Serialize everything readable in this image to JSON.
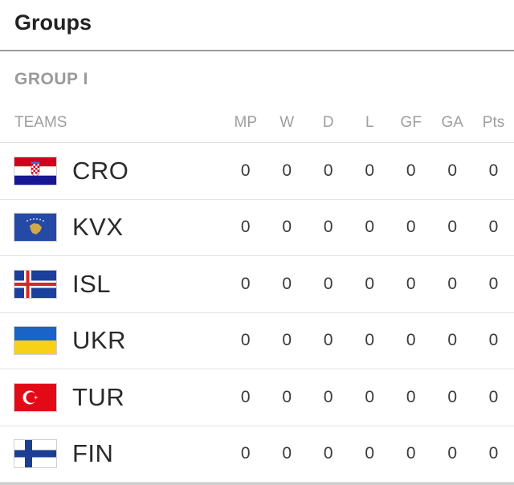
{
  "header": {
    "title": "Groups"
  },
  "group": {
    "label": "GROUP I"
  },
  "table": {
    "columns": {
      "team": "TEAMS",
      "mp": "MP",
      "w": "W",
      "d": "D",
      "l": "L",
      "gf": "GF",
      "ga": "GA",
      "pts": "Pts"
    },
    "rows": [
      {
        "team": "CRO",
        "flag": "croatia-flag",
        "mp": "0",
        "w": "0",
        "d": "0",
        "l": "0",
        "gf": "0",
        "ga": "0",
        "pts": "0"
      },
      {
        "team": "KVX",
        "flag": "kosovo-flag",
        "mp": "0",
        "w": "0",
        "d": "0",
        "l": "0",
        "gf": "0",
        "ga": "0",
        "pts": "0"
      },
      {
        "team": "ISL",
        "flag": "iceland-flag",
        "mp": "0",
        "w": "0",
        "d": "0",
        "l": "0",
        "gf": "0",
        "ga": "0",
        "pts": "0"
      },
      {
        "team": "UKR",
        "flag": "ukraine-flag",
        "mp": "0",
        "w": "0",
        "d": "0",
        "l": "0",
        "gf": "0",
        "ga": "0",
        "pts": "0"
      },
      {
        "team": "TUR",
        "flag": "turkey-flag",
        "mp": "0",
        "w": "0",
        "d": "0",
        "l": "0",
        "gf": "0",
        "ga": "0",
        "pts": "0"
      },
      {
        "team": "FIN",
        "flag": "finland-flag",
        "mp": "0",
        "w": "0",
        "d": "0",
        "l": "0",
        "gf": "0",
        "ga": "0",
        "pts": "0"
      }
    ]
  },
  "colors": {
    "header_rule": "#9e9e9e",
    "muted_text": "#9e9e9e",
    "row_divider": "#e3e3e3"
  }
}
